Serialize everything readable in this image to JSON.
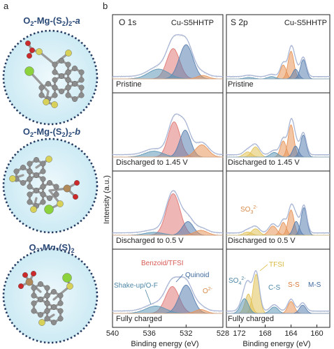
{
  "panel_labels": {
    "a": "a",
    "b": "b"
  },
  "structures": [
    {
      "title": "O₂-Mg-(S₂)₂-a",
      "main": "O",
      "s1": "2",
      "mid": "-Mg-(S",
      "s2": "2",
      "mid2": ")",
      "s3": "2",
      "suffix": "-a"
    },
    {
      "title": "O₂-Mg-(S₂)₂-b",
      "main": "O",
      "s1": "2",
      "mid": "-Mg-(S",
      "s2": "2",
      "mid2": ")",
      "s3": "2",
      "suffix": "-b"
    },
    {
      "title": "O₂-Mg-(S)₂",
      "main": "O",
      "s1": "2",
      "mid": "-Mg-(S)",
      "s2": "2",
      "mid2": "",
      "s3": "",
      "suffix": ""
    }
  ],
  "colors": {
    "envelope": "#a9b6d6",
    "raw": "#c9c9c9",
    "red": "#e07a76",
    "blue": "#5a80b0",
    "orange": "#e8955a",
    "teal": "#5f97b6",
    "yellow": "#e2c35a",
    "circle_fill": "#cdeaf4",
    "circle_edge": "#243a5e",
    "c_atom": "#8c8c8c",
    "s_atom": "#d7d15a",
    "o_atom": "#cc2a2a",
    "cu_atom": "#b08a5a",
    "mg_atom": "#8cd23c"
  },
  "chart_data": {
    "type": "line",
    "ylabel": "Intensity (a.u.)",
    "panels": [
      {
        "element": "O 1s",
        "material": "Cu-S5HHTP",
        "xlabel": "Binding energy (eV)",
        "xlim": [
          540,
          528
        ],
        "ticks": [
          540,
          536,
          532,
          528
        ],
        "tick_labels": [
          "540",
          "536",
          "532",
          "528"
        ],
        "states": [
          {
            "label": "Pristine",
            "peaks": [
              {
                "name": "Benzoid/TFSI",
                "center": 533.4,
                "height": 0.62,
                "width": 0.7,
                "color": "red"
              },
              {
                "name": "Quinoid",
                "center": 532.0,
                "height": 0.7,
                "width": 0.75,
                "color": "blue"
              },
              {
                "name": "Shake-up/O-F",
                "center": 535.0,
                "height": 0.2,
                "width": 1.1,
                "color": "teal"
              },
              {
                "name": "O2-",
                "center": 530.2,
                "height": 0.07,
                "width": 0.6,
                "color": "orange"
              }
            ]
          },
          {
            "label": "Discharged to 1.45 V",
            "peaks": [
              {
                "name": "Benzoid/TFSI",
                "center": 533.3,
                "height": 0.72,
                "width": 0.65,
                "color": "red"
              },
              {
                "name": "Quinoid",
                "center": 532.1,
                "height": 0.55,
                "width": 0.6,
                "color": "blue"
              },
              {
                "name": "Shake-up/O-F",
                "center": 535.5,
                "height": 0.12,
                "width": 1.0,
                "color": "teal"
              },
              {
                "name": "O2-",
                "center": 530.3,
                "height": 0.25,
                "width": 0.7,
                "color": "orange"
              }
            ]
          },
          {
            "label": "Discharged to 0.5 V",
            "peaks": [
              {
                "name": "Benzoid/TFSI",
                "center": 533.4,
                "height": 0.85,
                "width": 0.75,
                "color": "red"
              },
              {
                "name": "Quinoid",
                "center": 531.8,
                "height": 0.28,
                "width": 0.6,
                "color": "blue"
              },
              {
                "name": "Shake-up/O-F",
                "center": 535.5,
                "height": 0.06,
                "width": 1.0,
                "color": "teal"
              },
              {
                "name": "O2-",
                "center": 530.4,
                "height": 0.1,
                "width": 0.7,
                "color": "orange"
              }
            ]
          },
          {
            "label": "Fully charged",
            "peaks": [
              {
                "name": "Benzoid/TFSI",
                "center": 533.5,
                "height": 0.55,
                "width": 0.75,
                "color": "red"
              },
              {
                "name": "Quinoid",
                "center": 532.0,
                "height": 0.58,
                "width": 0.75,
                "color": "blue"
              },
              {
                "name": "Shake-up/O-F",
                "center": 535.3,
                "height": 0.15,
                "width": 1.1,
                "color": "teal"
              },
              {
                "name": "O2-",
                "center": 530.4,
                "height": 0.08,
                "width": 0.6,
                "color": "orange"
              }
            ]
          }
        ]
      },
      {
        "element": "S 2p",
        "material": "Cu-S5HHTP",
        "xlabel": "Binding energy (eV)",
        "xlim": [
          174,
          158
        ],
        "ticks": [
          172,
          168,
          164,
          160
        ],
        "tick_labels": [
          "172",
          "168",
          "164",
          "160"
        ],
        "states": [
          {
            "label": "Pristine",
            "peaks": [
              {
                "name": "S-S",
                "center": 164.0,
                "height": 0.6,
                "width": 0.45,
                "color": "orange"
              },
              {
                "name": "S-S",
                "center": 165.2,
                "height": 0.3,
                "width": 0.45,
                "color": "orange"
              },
              {
                "name": "M-S",
                "center": 162.1,
                "height": 0.42,
                "width": 0.45,
                "color": "blue"
              },
              {
                "name": "M-S",
                "center": 163.3,
                "height": 0.21,
                "width": 0.45,
                "color": "blue"
              },
              {
                "name": "C-S",
                "center": 167.0,
                "height": 0.05,
                "width": 0.6,
                "color": "teal"
              },
              {
                "name": "SO42-",
                "center": 170.5,
                "height": 0.03,
                "width": 0.7,
                "color": "teal"
              }
            ]
          },
          {
            "label": "Discharged to 1.45 V",
            "peaks": [
              {
                "name": "S-S",
                "center": 164.0,
                "height": 0.7,
                "width": 0.45,
                "color": "orange"
              },
              {
                "name": "S-S",
                "center": 165.2,
                "height": 0.35,
                "width": 0.45,
                "color": "orange"
              },
              {
                "name": "M-S",
                "center": 162.1,
                "height": 0.48,
                "width": 0.45,
                "color": "blue"
              },
              {
                "name": "M-S",
                "center": 163.3,
                "height": 0.24,
                "width": 0.45,
                "color": "blue"
              },
              {
                "name": "TFSI",
                "center": 169.5,
                "height": 0.22,
                "width": 0.6,
                "color": "yellow"
              },
              {
                "name": "TFSI",
                "center": 170.7,
                "height": 0.11,
                "width": 0.6,
                "color": "yellow"
              },
              {
                "name": "C-S",
                "center": 166.6,
                "height": 0.1,
                "width": 0.6,
                "color": "teal"
              }
            ]
          },
          {
            "label": "Discharged to 0.5 V",
            "peaks": [
              {
                "name": "S-S",
                "center": 164.0,
                "height": 0.55,
                "width": 0.45,
                "color": "orange"
              },
              {
                "name": "S-S",
                "center": 165.2,
                "height": 0.28,
                "width": 0.45,
                "color": "orange"
              },
              {
                "name": "M-S",
                "center": 162.0,
                "height": 0.6,
                "width": 0.45,
                "color": "blue"
              },
              {
                "name": "M-S",
                "center": 163.2,
                "height": 0.3,
                "width": 0.45,
                "color": "blue"
              },
              {
                "name": "SO32-",
                "center": 166.8,
                "height": 0.2,
                "width": 0.6,
                "color": "orange"
              },
              {
                "name": "TFSI",
                "center": 169.5,
                "height": 0.14,
                "width": 0.6,
                "color": "yellow"
              },
              {
                "name": "TFSI",
                "center": 170.7,
                "height": 0.07,
                "width": 0.6,
                "color": "yellow"
              }
            ]
          },
          {
            "label": "Fully charged",
            "peaks": [
              {
                "name": "TFSI",
                "center": 169.4,
                "height": 0.85,
                "width": 0.5,
                "color": "yellow"
              },
              {
                "name": "TFSI",
                "center": 170.6,
                "height": 0.42,
                "width": 0.5,
                "color": "yellow"
              },
              {
                "name": "SO42-",
                "center": 171.2,
                "height": 0.32,
                "width": 0.6,
                "color": "teal"
              },
              {
                "name": "C-S",
                "center": 166.6,
                "height": 0.14,
                "width": 0.6,
                "color": "teal"
              },
              {
                "name": "S-S",
                "center": 164.0,
                "height": 0.26,
                "width": 0.5,
                "color": "orange"
              },
              {
                "name": "M-S",
                "center": 162.2,
                "height": 0.18,
                "width": 0.5,
                "color": "blue"
              }
            ]
          }
        ]
      }
    ],
    "annotations": {
      "o_fully": [
        "Benzoid/TFSI",
        "Quinoid",
        "Shake-up/O-F",
        "O2-"
      ],
      "o2_main": "O",
      "o2_sup": "2-",
      "s_discharged_half": {
        "main": "SO",
        "sub": "3",
        "sup": "2-"
      },
      "s_fully": {
        "so4_main": "SO",
        "so4_sub": "4",
        "so4_sup": "2-",
        "tfsi": "TFSI",
        "cs": "C-S",
        "ss": "S-S",
        "ms": "M-S"
      }
    }
  }
}
